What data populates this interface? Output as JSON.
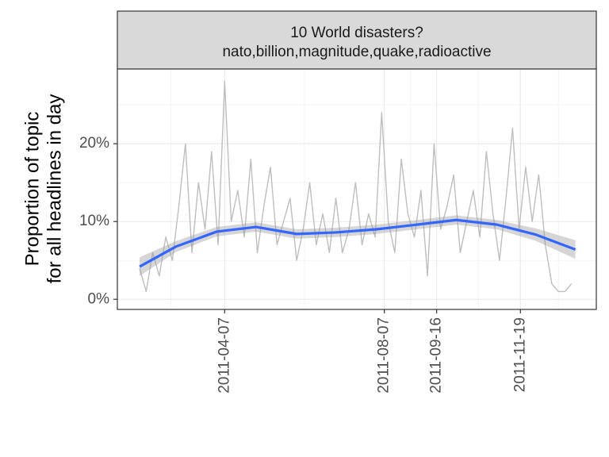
{
  "chart_data": {
    "type": "line",
    "title": "10 World disasters?",
    "subtitle": "nato,billion,magnitude,quake,radioactive",
    "ylabel": [
      "Proportion of topic",
      "for all headlines in day"
    ],
    "xlim": [
      "2011-01-15",
      "2012-01-16"
    ],
    "xticks": [
      "2011-04-07",
      "2011-08-07",
      "2011-09-16",
      "2011-11-19"
    ],
    "ylim": [
      -1.3,
      29.6
    ],
    "yticks": [
      {
        "value": 0,
        "label": "0%"
      },
      {
        "value": 10,
        "label": "10%"
      },
      {
        "value": 20,
        "label": "20%"
      }
    ],
    "grid": true,
    "series": [
      {
        "color": "#bebebe",
        "x": [
          "2011-02-01",
          "2011-02-06",
          "2011-02-11",
          "2011-02-16",
          "2011-02-21",
          "2011-02-26",
          "2011-03-03",
          "2011-03-08",
          "2011-03-13",
          "2011-03-18",
          "2011-03-23",
          "2011-03-28",
          "2011-04-02",
          "2011-04-07",
          "2011-04-12",
          "2011-04-17",
          "2011-04-22",
          "2011-04-27",
          "2011-05-02",
          "2011-05-07",
          "2011-05-12",
          "2011-05-17",
          "2011-05-22",
          "2011-05-27",
          "2011-06-01",
          "2011-06-06",
          "2011-06-11",
          "2011-06-16",
          "2011-06-21",
          "2011-06-26",
          "2011-07-01",
          "2011-07-06",
          "2011-07-11",
          "2011-07-16",
          "2011-07-21",
          "2011-07-26",
          "2011-07-31",
          "2011-08-05",
          "2011-08-10",
          "2011-08-15",
          "2011-08-20",
          "2011-08-25",
          "2011-08-30",
          "2011-09-04",
          "2011-09-09",
          "2011-09-14",
          "2011-09-19",
          "2011-09-24",
          "2011-09-29",
          "2011-10-04",
          "2011-10-09",
          "2011-10-14",
          "2011-10-19",
          "2011-10-24",
          "2011-10-29",
          "2011-11-03",
          "2011-11-08",
          "2011-11-13",
          "2011-11-18",
          "2011-11-23",
          "2011-11-28",
          "2011-12-03",
          "2011-12-08",
          "2011-12-13",
          "2011-12-18",
          "2011-12-23",
          "2011-12-28"
        ],
        "values": [
          4,
          1,
          6,
          3,
          8,
          5,
          12,
          20,
          6,
          15,
          9,
          19,
          7,
          28,
          10,
          14,
          8,
          18,
          6,
          12,
          17,
          7,
          10,
          13,
          5,
          9,
          15,
          7,
          11,
          6,
          13,
          6,
          9,
          15,
          7,
          11,
          8,
          24,
          10,
          6,
          18,
          11,
          8,
          14,
          3,
          20,
          9,
          12,
          16,
          6,
          10,
          14,
          8,
          19,
          11,
          5,
          13,
          22,
          9,
          17,
          10,
          16,
          7,
          2,
          1,
          1,
          2
        ]
      },
      {
        "color": "#3366ff",
        "band_color": "#999999",
        "x": [
          "2011-02-01",
          "2011-03-01",
          "2011-04-01",
          "2011-05-01",
          "2011-06-01",
          "2011-07-01",
          "2011-08-01",
          "2011-09-01",
          "2011-10-01",
          "2011-11-01",
          "2011-12-01",
          "2011-12-31"
        ],
        "values": [
          4.2,
          6.8,
          8.7,
          9.3,
          8.4,
          8.6,
          9.0,
          9.6,
          10.2,
          9.6,
          8.3,
          6.4
        ],
        "lower": [
          3.0,
          6.1,
          8.1,
          8.7,
          7.8,
          8.0,
          8.4,
          9.0,
          9.6,
          9.0,
          7.5,
          5.2
        ],
        "upper": [
          5.4,
          7.5,
          9.3,
          9.9,
          9.0,
          9.2,
          9.6,
          10.2,
          10.8,
          10.2,
          9.1,
          7.6
        ]
      }
    ]
  }
}
